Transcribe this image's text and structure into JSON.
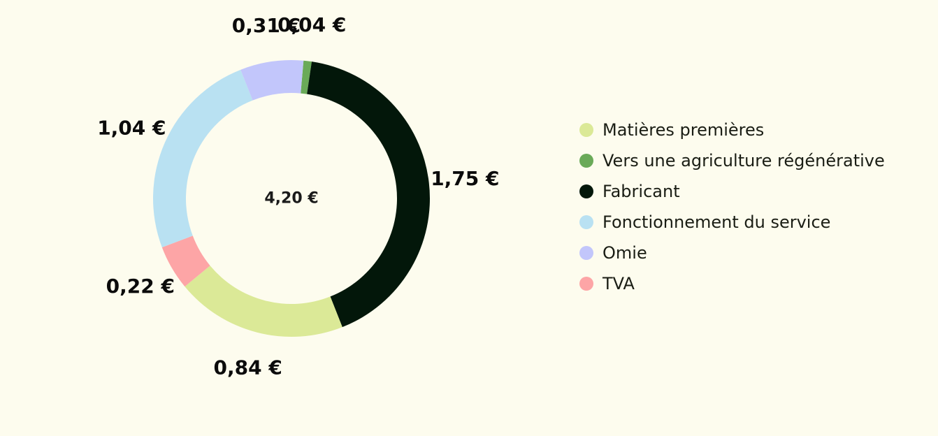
{
  "chart_data": {
    "type": "pie",
    "subtype": "donut",
    "total_label": "4,20 €",
    "slices": [
      {
        "name": "Vers une agriculture régénérative",
        "value": 0.04,
        "label": "0,04 €",
        "color": "#6aaa58"
      },
      {
        "name": "Fabricant",
        "value": 1.75,
        "label": "1,75 €",
        "color": "#03170a"
      },
      {
        "name": "Matières premières",
        "value": 0.84,
        "label": "0,84 €",
        "color": "#dbe997"
      },
      {
        "name": "TVA",
        "value": 0.22,
        "label": "0,22 €",
        "color": "#fda5a6"
      },
      {
        "name": "Fonctionnement du service",
        "value": 1.04,
        "label": "1,04 €",
        "color": "#b9e1f2"
      },
      {
        "name": "Omie",
        "value": 0.31,
        "label": "0,31 €",
        "color": "#c2c6fb"
      }
    ],
    "legend": {
      "position": "right",
      "items": [
        {
          "label": "Matières premières",
          "color": "#dbe997"
        },
        {
          "label": "Vers une agriculture régénérative",
          "color": "#6aaa58"
        },
        {
          "label": "Fabricant",
          "color": "#03170a"
        },
        {
          "label": "Fonctionnement du service",
          "color": "#b9e1f2"
        },
        {
          "label": "Omie",
          "color": "#c2c6fb"
        },
        {
          "label": "TVA",
          "color": "#fda5a6"
        }
      ]
    }
  }
}
